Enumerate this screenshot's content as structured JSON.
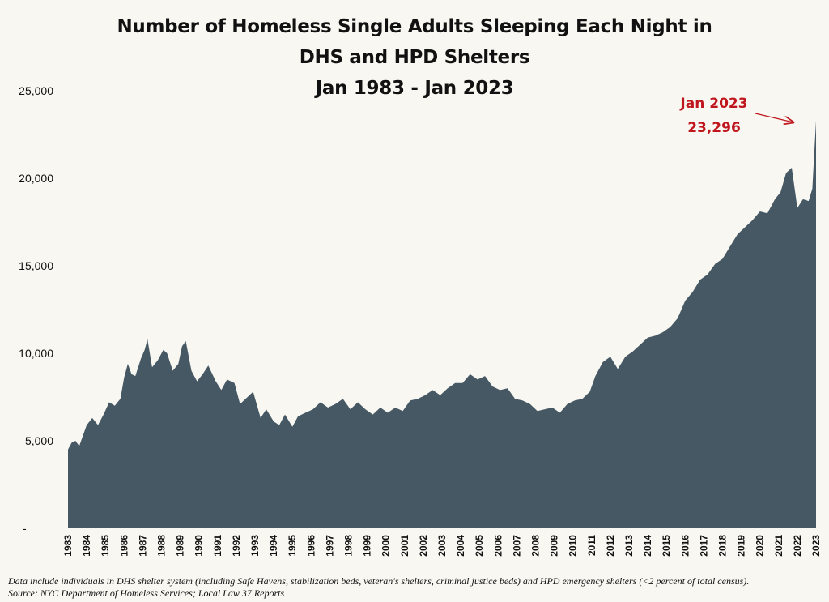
{
  "title_lines": [
    "Number of Homeless Single Adults Sleeping Each Night in",
    "DHS and HPD Shelters",
    "Jan 1983 - Jan 2023"
  ],
  "colors": {
    "area": "#465864",
    "annotation": "#c0161d",
    "background": "#f8f7f1"
  },
  "chart_data": {
    "type": "area",
    "title": "Number of Homeless Single Adults Sleeping Each Night in DHS and HPD Shelters Jan 1983 - Jan 2023",
    "xlabel": "",
    "ylabel": "",
    "ylim": [
      0,
      25000
    ],
    "xlim": [
      1983.0,
      2023.0
    ],
    "grid": false,
    "y_ticks": [
      {
        "value": 0,
        "label": "-"
      },
      {
        "value": 5000,
        "label": "5,000"
      },
      {
        "value": 10000,
        "label": "10,000"
      },
      {
        "value": 15000,
        "label": "15,000"
      },
      {
        "value": 20000,
        "label": "20,000"
      },
      {
        "value": 25000,
        "label": "25,000"
      }
    ],
    "x_ticks": [
      "1983",
      "1984",
      "1985",
      "1986",
      "1987",
      "1988",
      "1989",
      "1990",
      "1991",
      "1992",
      "1993",
      "1994",
      "1995",
      "1996",
      "1997",
      "1998",
      "1999",
      "2000",
      "2001",
      "2002",
      "2003",
      "2004",
      "2005",
      "2006",
      "2007",
      "2008",
      "2009",
      "2010",
      "2011",
      "2012",
      "2013",
      "2014",
      "2015",
      "2016",
      "2017",
      "2018",
      "2019",
      "2020",
      "2021",
      "2022",
      "2023"
    ],
    "series": [
      {
        "x": [
          1983.0,
          1983.2,
          1983.4,
          1983.6,
          1983.8,
          1984.0,
          1984.3,
          1984.6,
          1984.9,
          1985.2,
          1985.5,
          1985.8,
          1986.0,
          1986.2,
          1986.4,
          1986.6,
          1986.9,
          1987.1,
          1987.25,
          1987.5,
          1987.8,
          1988.1,
          1988.3,
          1988.6,
          1988.9,
          1989.1,
          1989.3,
          1989.6,
          1989.9,
          1990.2,
          1990.5,
          1990.9,
          1991.2,
          1991.5,
          1991.9,
          1992.2,
          1992.5,
          1992.9,
          1993.3,
          1993.6,
          1994.0,
          1994.3,
          1994.6,
          1995.0,
          1995.3,
          1995.7,
          1996.1,
          1996.5,
          1996.9,
          1997.3,
          1997.7,
          1998.1,
          1998.5,
          1998.9,
          1999.3,
          1999.7,
          2000.1,
          2000.5,
          2000.9,
          2001.3,
          2001.7,
          2002.1,
          2002.5,
          2002.9,
          2003.3,
          2003.7,
          2004.1,
          2004.5,
          2004.9,
          2005.3,
          2005.7,
          2006.1,
          2006.5,
          2006.9,
          2007.3,
          2007.7,
          2008.1,
          2008.5,
          2008.9,
          2009.3,
          2009.7,
          2010.1,
          2010.5,
          2010.9,
          2011.2,
          2011.6,
          2012.0,
          2012.4,
          2012.8,
          2013.2,
          2013.6,
          2014.0,
          2014.4,
          2014.8,
          2015.2,
          2015.6,
          2016.0,
          2016.4,
          2016.8,
          2017.2,
          2017.6,
          2018.0,
          2018.4,
          2018.8,
          2019.2,
          2019.6,
          2020.0,
          2020.4,
          2020.8,
          2021.1,
          2021.4,
          2021.7,
          2022.0,
          2022.3,
          2022.6,
          2022.8,
          2023.0
        ],
        "y": [
          4500,
          4900,
          5000,
          4700,
          5300,
          5900,
          6300,
          5900,
          6500,
          7200,
          7000,
          7400,
          8600,
          9400,
          8800,
          8700,
          9700,
          10200,
          10800,
          9200,
          9600,
          10200,
          10000,
          9000,
          9400,
          10400,
          10700,
          9000,
          8400,
          8800,
          9300,
          8400,
          7900,
          8500,
          8300,
          7100,
          7400,
          7800,
          6300,
          6800,
          6100,
          5900,
          6500,
          5800,
          6400,
          6600,
          6800,
          7200,
          6900,
          7100,
          7400,
          6800,
          7200,
          6800,
          6500,
          6900,
          6600,
          6900,
          6700,
          7300,
          7400,
          7600,
          7900,
          7600,
          8000,
          8300,
          8300,
          8800,
          8500,
          8700,
          8100,
          7900,
          8000,
          7400,
          7300,
          7100,
          6700,
          6800,
          6900,
          6600,
          7100,
          7300,
          7400,
          7800,
          8700,
          9500,
          9800,
          9100,
          9800,
          10100,
          10500,
          10900,
          11000,
          11200,
          11500,
          12000,
          13000,
          13500,
          14200,
          14500,
          15100,
          15400,
          16100,
          16800,
          17200,
          17600,
          18100,
          18000,
          18800,
          19200,
          20300,
          20600,
          18300,
          18800,
          18700,
          19400,
          23296
        ]
      }
    ],
    "annotation": {
      "label": "Jan 2023",
      "value_label": "23,296",
      "x": 2023.0,
      "y": 23296
    }
  },
  "footnote": {
    "line1": "Data include individuals in DHS shelter system (including Safe Havens, stabilization beds, veteran's shelters, criminal justice beds) and HPD emergency shelters (<2 percent of total census).",
    "line2": "Source:  NYC Department of Homeless Services; Local Law 37 Reports"
  }
}
